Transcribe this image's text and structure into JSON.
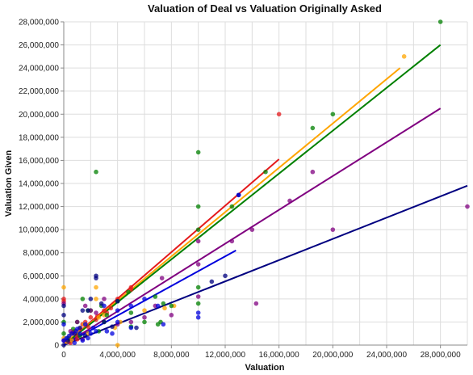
{
  "chart_data": {
    "type": "scatter",
    "title": "Valuation of Deal vs Valuation Originally Asked",
    "xlabel": "Valuation",
    "ylabel": "Valuation Given",
    "xlim": [
      0,
      30000000
    ],
    "ylim": [
      0,
      28000000
    ],
    "xticks": [
      0,
      4000000,
      8000000,
      12000000,
      16000000,
      20000000,
      24000000,
      28000000
    ],
    "xtick_labels": [
      "0",
      "4,000,000",
      "8,000,000",
      "12,000,000",
      "16,000,000",
      "20,000,000",
      "24,000,000",
      "28,000,000"
    ],
    "yticks": [
      0,
      2000000,
      4000000,
      6000000,
      8000000,
      10000000,
      12000000,
      14000000,
      16000000,
      18000000,
      20000000,
      22000000,
      24000000,
      26000000,
      28000000
    ],
    "ytick_labels": [
      "0",
      "2,000,000",
      "4,000,000",
      "6,000,000",
      "8,000,000",
      "10,000,000",
      "12,000,000",
      "14,000,000",
      "16,000,000",
      "18,000,000",
      "20,000,000",
      "22,000,000",
      "24,000,000",
      "26,000,000",
      "28,000,000"
    ],
    "grid": true,
    "series": [
      {
        "color": "#e41a1c",
        "points": [
          [
            0,
            4000000
          ],
          [
            0,
            3800000
          ],
          [
            200000,
            300000
          ],
          [
            400000,
            600000
          ],
          [
            600000,
            1000000
          ],
          [
            800000,
            1200000
          ],
          [
            1000000,
            800000
          ],
          [
            1200000,
            1400000
          ],
          [
            1400000,
            1800000
          ],
          [
            1600000,
            2000000
          ],
          [
            1800000,
            1600000
          ],
          [
            2000000,
            2400000
          ],
          [
            2400000,
            2200000
          ],
          [
            3000000,
            3000000
          ],
          [
            3200000,
            2800000
          ],
          [
            5000000,
            5000000
          ],
          [
            5000000,
            4800000
          ],
          [
            1000000,
            500000
          ],
          [
            500000,
            200000
          ],
          [
            2500000,
            2500000
          ],
          [
            16000000,
            20000000
          ],
          [
            3500000,
            3200000
          ],
          [
            4000000,
            4000000
          ],
          [
            700000,
            1100000
          ]
        ],
        "trend": [
          [
            0,
            0
          ],
          [
            16000000,
            16100000
          ]
        ]
      },
      {
        "color": "#ffa500",
        "points": [
          [
            0,
            5000000
          ],
          [
            0,
            600000
          ],
          [
            200000,
            300000
          ],
          [
            500000,
            800000
          ],
          [
            1000000,
            1200000
          ],
          [
            1500000,
            1800000
          ],
          [
            2400000,
            5000000
          ],
          [
            2400000,
            4000000
          ],
          [
            2600000,
            2400000
          ],
          [
            3000000,
            2600000
          ],
          [
            4000000,
            0
          ],
          [
            4200000,
            2000000
          ],
          [
            6000000,
            3000000
          ],
          [
            7500000,
            3200000
          ],
          [
            8200000,
            3400000
          ],
          [
            25300000,
            25000000
          ],
          [
            1800000,
            1000000
          ],
          [
            3800000,
            1500000
          ],
          [
            600000,
            400000
          ]
        ],
        "trend": [
          [
            0,
            0
          ],
          [
            25000000,
            24000000
          ]
        ]
      },
      {
        "color": "#008000",
        "points": [
          [
            0,
            2000000
          ],
          [
            0,
            1000000
          ],
          [
            300000,
            600000
          ],
          [
            700000,
            1400000
          ],
          [
            1000000,
            2000000
          ],
          [
            1400000,
            4000000
          ],
          [
            1800000,
            3000000
          ],
          [
            2000000,
            3000000
          ],
          [
            2400000,
            15000000
          ],
          [
            2800000,
            3400000
          ],
          [
            3000000,
            2000000
          ],
          [
            3200000,
            2600000
          ],
          [
            4000000,
            3800000
          ],
          [
            4800000,
            4600000
          ],
          [
            5000000,
            2800000
          ],
          [
            5000000,
            1600000
          ],
          [
            6000000,
            2000000
          ],
          [
            7000000,
            1800000
          ],
          [
            7200000,
            2000000
          ],
          [
            7400000,
            3600000
          ],
          [
            8000000,
            3400000
          ],
          [
            10000000,
            16700000
          ],
          [
            10000000,
            12000000
          ],
          [
            10000000,
            10000000
          ],
          [
            10000000,
            5000000
          ],
          [
            10000000,
            3600000
          ],
          [
            12500000,
            12000000
          ],
          [
            15000000,
            15000000
          ],
          [
            18500000,
            18800000
          ],
          [
            20000000,
            20000000
          ],
          [
            28000000,
            28000000
          ],
          [
            1200000,
            800000
          ],
          [
            2600000,
            1200000
          ],
          [
            6800000,
            4200000
          ]
        ],
        "trend": [
          [
            0,
            0
          ],
          [
            28000000,
            26000000
          ]
        ]
      },
      {
        "color": "#800080",
        "points": [
          [
            0,
            3600000
          ],
          [
            0,
            400000
          ],
          [
            500000,
            1200000
          ],
          [
            1000000,
            2000000
          ],
          [
            1600000,
            3400000
          ],
          [
            2000000,
            3000000
          ],
          [
            2400000,
            2800000
          ],
          [
            3000000,
            4000000
          ],
          [
            4000000,
            1800000
          ],
          [
            5000000,
            2000000
          ],
          [
            6000000,
            2400000
          ],
          [
            6800000,
            3400000
          ],
          [
            8000000,
            2600000
          ],
          [
            10000000,
            7000000
          ],
          [
            10000000,
            9000000
          ],
          [
            10000000,
            4200000
          ],
          [
            12500000,
            9000000
          ],
          [
            14000000,
            10000000
          ],
          [
            14300000,
            3600000
          ],
          [
            16800000,
            12500000
          ],
          [
            18500000,
            15000000
          ],
          [
            20000000,
            10000000
          ],
          [
            30000000,
            12000000
          ],
          [
            7300000,
            5800000
          ],
          [
            1400000,
            500000
          ]
        ],
        "trend": [
          [
            0,
            0
          ],
          [
            28000000,
            20500000
          ]
        ]
      },
      {
        "color": "#000080",
        "points": [
          [
            0,
            0
          ],
          [
            0,
            2600000
          ],
          [
            0,
            3400000
          ],
          [
            300000,
            400000
          ],
          [
            800000,
            1000000
          ],
          [
            1200000,
            1500000
          ],
          [
            1400000,
            3000000
          ],
          [
            1800000,
            3000000
          ],
          [
            2000000,
            4000000
          ],
          [
            2400000,
            6000000
          ],
          [
            2400000,
            5800000
          ],
          [
            2800000,
            3600000
          ],
          [
            3000000,
            2000000
          ],
          [
            3600000,
            1600000
          ],
          [
            4000000,
            3800000
          ],
          [
            11000000,
            5500000
          ],
          [
            12000000,
            6000000
          ],
          [
            13000000,
            13000000
          ],
          [
            5400000,
            1500000
          ],
          [
            1600000,
            800000
          ]
        ],
        "trend": [
          [
            0,
            0
          ],
          [
            30000000,
            13800000
          ]
        ]
      },
      {
        "color": "#0000dd",
        "points": [
          [
            0,
            1800000
          ],
          [
            0,
            400000
          ],
          [
            200000,
            600000
          ],
          [
            400000,
            800000
          ],
          [
            600000,
            1000000
          ],
          [
            900000,
            1200000
          ],
          [
            1000000,
            1400000
          ],
          [
            1200000,
            1000000
          ],
          [
            1400000,
            400000
          ],
          [
            1600000,
            1800000
          ],
          [
            2000000,
            1000000
          ],
          [
            2200000,
            1500000
          ],
          [
            2400000,
            1200000
          ],
          [
            3000000,
            3400000
          ],
          [
            3200000,
            1200000
          ],
          [
            3600000,
            1000000
          ],
          [
            4000000,
            3000000
          ],
          [
            4000000,
            2000000
          ],
          [
            5000000,
            3400000
          ],
          [
            5000000,
            1500000
          ],
          [
            6000000,
            4000000
          ],
          [
            7000000,
            3400000
          ],
          [
            7400000,
            1800000
          ],
          [
            10000000,
            2800000
          ],
          [
            10000000,
            2400000
          ],
          [
            13000000,
            13000000
          ],
          [
            800000,
            200000
          ],
          [
            1800000,
            600000
          ]
        ],
        "trend": [
          [
            0,
            0
          ],
          [
            12800000,
            8200000
          ]
        ]
      }
    ]
  }
}
